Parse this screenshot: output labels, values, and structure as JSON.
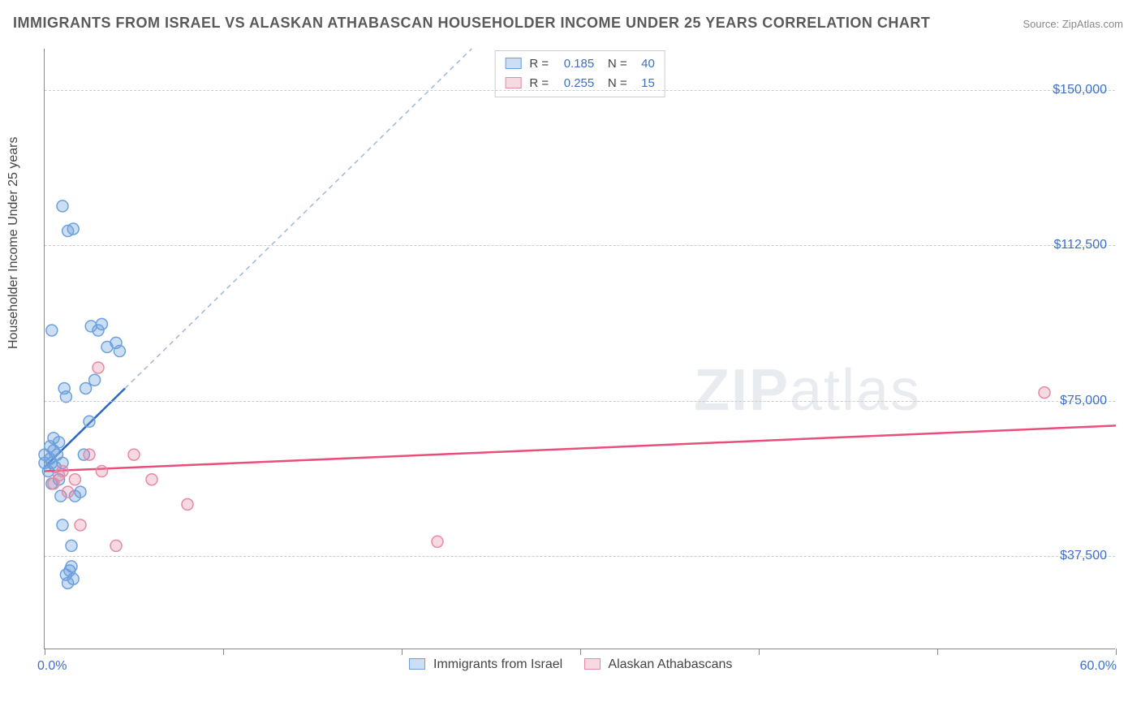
{
  "title": "IMMIGRANTS FROM ISRAEL VS ALASKAN ATHABASCAN HOUSEHOLDER INCOME UNDER 25 YEARS CORRELATION CHART",
  "source": "Source: ZipAtlas.com",
  "watermark_bold": "ZIP",
  "watermark_rest": "atlas",
  "chart": {
    "type": "scatter-correlation",
    "background_color": "#ffffff",
    "grid_color": "#cccccc",
    "axis_color": "#888888",
    "text_color": "#444444",
    "value_color": "#3b6fc9",
    "ylabel": "Householder Income Under 25 years",
    "label_fontsize": 16,
    "title_fontsize": 18,
    "x": {
      "min": 0.0,
      "max": 60.0,
      "unit": "%",
      "left_label": "0.0%",
      "right_label": "60.0%",
      "ticks_at": [
        0,
        10,
        20,
        30,
        40,
        50,
        60
      ]
    },
    "y": {
      "min": 15000,
      "max": 160000,
      "ticks": [
        37500,
        75000,
        112500,
        150000
      ],
      "tick_labels": [
        "$37,500",
        "$75,000",
        "$112,500",
        "$150,000"
      ]
    },
    "series": [
      {
        "name": "Immigrants from Israel",
        "color_fill": "rgba(108,160,220,0.35)",
        "color_stroke": "#6ca0dc",
        "line_color": "#2b68c4",
        "r": 0.185,
        "n": 40,
        "marker_radius": 7,
        "points": [
          {
            "x": 0.0,
            "y": 60000
          },
          {
            "x": 0.0,
            "y": 62000
          },
          {
            "x": 0.2,
            "y": 58000
          },
          {
            "x": 0.3,
            "y": 61000
          },
          {
            "x": 0.3,
            "y": 64000
          },
          {
            "x": 0.4,
            "y": 55000
          },
          {
            "x": 0.4,
            "y": 60000
          },
          {
            "x": 0.5,
            "y": 63000
          },
          {
            "x": 0.5,
            "y": 66000
          },
          {
            "x": 0.6,
            "y": 59000
          },
          {
            "x": 0.7,
            "y": 62000
          },
          {
            "x": 0.8,
            "y": 56000
          },
          {
            "x": 0.8,
            "y": 65000
          },
          {
            "x": 0.9,
            "y": 52000
          },
          {
            "x": 1.0,
            "y": 45000
          },
          {
            "x": 1.0,
            "y": 60000
          },
          {
            "x": 1.1,
            "y": 78000
          },
          {
            "x": 1.2,
            "y": 76000
          },
          {
            "x": 1.2,
            "y": 33000
          },
          {
            "x": 1.3,
            "y": 31000
          },
          {
            "x": 1.4,
            "y": 34000
          },
          {
            "x": 1.5,
            "y": 35000
          },
          {
            "x": 1.5,
            "y": 40000
          },
          {
            "x": 1.6,
            "y": 32000
          },
          {
            "x": 1.7,
            "y": 52000
          },
          {
            "x": 2.0,
            "y": 53000
          },
          {
            "x": 2.2,
            "y": 62000
          },
          {
            "x": 2.3,
            "y": 78000
          },
          {
            "x": 2.5,
            "y": 70000
          },
          {
            "x": 2.6,
            "y": 93000
          },
          {
            "x": 2.8,
            "y": 80000
          },
          {
            "x": 3.0,
            "y": 92000
          },
          {
            "x": 3.2,
            "y": 93500
          },
          {
            "x": 3.5,
            "y": 88000
          },
          {
            "x": 4.0,
            "y": 89000
          },
          {
            "x": 4.2,
            "y": 87000
          },
          {
            "x": 1.0,
            "y": 122000
          },
          {
            "x": 1.3,
            "y": 116000
          },
          {
            "x": 1.6,
            "y": 116500
          },
          {
            "x": 0.4,
            "y": 92000
          }
        ],
        "trend": {
          "x1": 0.0,
          "y1": 59000,
          "x2": 4.5,
          "y2": 78000,
          "dashed_extend_to_top": true
        }
      },
      {
        "name": "Alaskan Athabascans",
        "color_fill": "rgba(230,130,160,0.30)",
        "color_stroke": "#e58aa5",
        "line_color": "#e94f7a",
        "r": 0.255,
        "n": 15,
        "marker_radius": 7,
        "points": [
          {
            "x": 0.5,
            "y": 55000
          },
          {
            "x": 0.8,
            "y": 57000
          },
          {
            "x": 1.0,
            "y": 58000
          },
          {
            "x": 1.3,
            "y": 53000
          },
          {
            "x": 1.7,
            "y": 56000
          },
          {
            "x": 2.0,
            "y": 45000
          },
          {
            "x": 2.5,
            "y": 62000
          },
          {
            "x": 3.0,
            "y": 83000
          },
          {
            "x": 3.2,
            "y": 58000
          },
          {
            "x": 4.0,
            "y": 40000
          },
          {
            "x": 5.0,
            "y": 62000
          },
          {
            "x": 6.0,
            "y": 56000
          },
          {
            "x": 8.0,
            "y": 50000
          },
          {
            "x": 22.0,
            "y": 41000
          },
          {
            "x": 56.0,
            "y": 77000
          }
        ],
        "trend": {
          "x1": 0.0,
          "y1": 58000,
          "x2": 60.0,
          "y2": 69000
        }
      }
    ]
  },
  "top_legend": {
    "rows": [
      {
        "swatch_fill": "rgba(108,160,220,0.35)",
        "swatch_stroke": "#6ca0dc",
        "r_label": "R =",
        "r": "0.185",
        "n_label": "N =",
        "n": "40"
      },
      {
        "swatch_fill": "rgba(230,130,160,0.30)",
        "swatch_stroke": "#e58aa5",
        "r_label": "R =",
        "r": "0.255",
        "n_label": "N =",
        "n": "15"
      }
    ]
  },
  "bottom_legend": {
    "items": [
      {
        "swatch_fill": "rgba(108,160,220,0.35)",
        "swatch_stroke": "#6ca0dc",
        "label": "Immigrants from Israel"
      },
      {
        "swatch_fill": "rgba(230,130,160,0.30)",
        "swatch_stroke": "#e58aa5",
        "label": "Alaskan Athabascans"
      }
    ]
  }
}
